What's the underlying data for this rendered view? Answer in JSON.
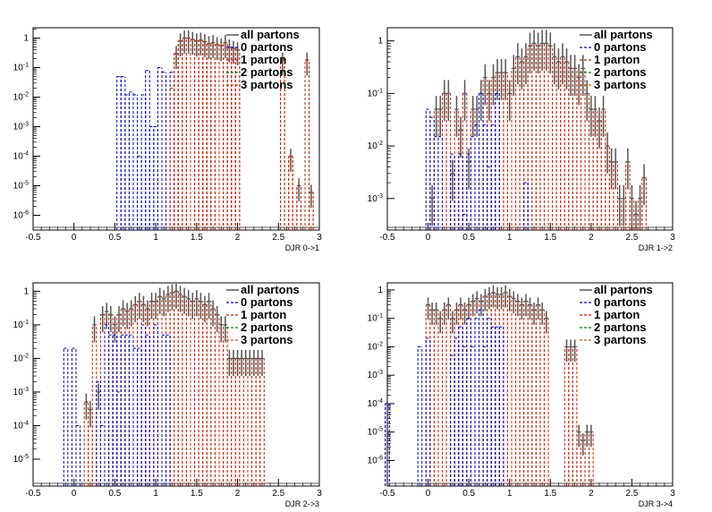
{
  "colors": {
    "all_partons": "#555555",
    "0_parton": "#0000cc",
    "1_parton": "#cc2200",
    "2_partons": "#008800",
    "3_partons": "#cc5500",
    "frame": "#000000",
    "background": "#ffffff"
  },
  "chart_data": [
    {
      "type": "histogram",
      "xlabel": "DJR 0->1",
      "ylabel": "",
      "xlim": [
        -0.5,
        3
      ],
      "ylim_log10": [
        -6.5,
        0.35
      ],
      "log_y": true,
      "grid": false,
      "legend_position": "top-right",
      "x_ticks": [
        "-0.5",
        "0",
        "0.5",
        "1",
        "1.5",
        "2",
        "2.5",
        "3"
      ],
      "y_ticks": [
        "1",
        "10-1",
        "10-2",
        "10-3",
        "10-4",
        "10-5",
        "10-6"
      ],
      "legend": [
        "all partons",
        "0 partons",
        "1 parton",
        "2 partons",
        "3 partons"
      ],
      "series": [
        {
          "name": "all partons",
          "style": "solid-with-error-bars",
          "x": [
            1.25,
            1.3,
            1.35,
            1.4,
            1.45,
            1.5,
            1.55,
            1.6,
            1.65,
            1.7,
            1.75,
            1.8,
            1.85,
            1.9,
            1.95,
            2.0,
            2.55,
            2.65,
            2.75,
            2.85,
            2.9
          ],
          "y": [
            0.3,
            0.8,
            1.0,
            1.0,
            0.9,
            0.8,
            0.85,
            0.75,
            0.65,
            0.7,
            0.6,
            0.55,
            0.7,
            0.5,
            0.45,
            0.4,
            0.18,
            0.0001,
            1e-05,
            0.18,
            6e-06
          ]
        },
        {
          "name": "0 partons",
          "style": "dashed",
          "x": [
            0.55,
            0.6,
            0.65,
            0.7,
            0.75,
            0.8,
            0.85,
            0.9,
            0.95,
            1.0,
            1.05,
            1.1,
            1.15,
            1.2
          ],
          "y": [
            0.05,
            0.05,
            0.012,
            0.015,
            0.012,
            0.0001,
            0.012,
            0.08,
            0.001,
            0.001,
            0.1,
            0.07,
            0.0,
            0.07
          ]
        },
        {
          "name": "1 parton",
          "style": "dashed",
          "x": [
            1.2,
            1.25,
            1.3,
            1.35,
            1.4,
            1.45,
            1.5,
            1.55,
            1.6,
            1.65,
            1.7,
            1.75,
            1.8,
            1.85,
            1.9,
            1.95,
            2.0,
            2.55,
            2.65,
            2.75,
            2.85,
            2.9
          ],
          "y": [
            0.02,
            0.3,
            0.8,
            1.0,
            1.0,
            0.9,
            0.8,
            0.85,
            0.75,
            0.65,
            0.7,
            0.6,
            0.55,
            0.7,
            0.5,
            0.45,
            0.4,
            0.18,
            0.0001,
            1e-05,
            0.18,
            6e-06
          ]
        },
        {
          "name": "2 partons",
          "style": "dashed",
          "x": [],
          "y": []
        },
        {
          "name": "3 partons",
          "style": "dashed",
          "x": [],
          "y": []
        }
      ]
    },
    {
      "type": "histogram",
      "xlabel": "DJR 1->2",
      "ylabel": "",
      "xlim": [
        -0.5,
        3
      ],
      "ylim_log10": [
        -3.6,
        0.25
      ],
      "log_y": true,
      "grid": false,
      "legend_position": "top-right",
      "x_ticks": [
        "-0.5",
        "0",
        "0.5",
        "1",
        "1.5",
        "2",
        "2.5",
        "3"
      ],
      "y_ticks": [
        "1",
        "10-1",
        "10-2",
        "10-3"
      ],
      "legend": [
        "all partons",
        "0 partons",
        "1 parton",
        "2 partons",
        "3 partons"
      ],
      "series": [
        {
          "name": "all partons",
          "style": "solid-with-error-bars",
          "x": [
            0.05,
            0.1,
            0.15,
            0.2,
            0.25,
            0.3,
            0.35,
            0.4,
            0.45,
            0.5,
            0.55,
            0.6,
            0.65,
            0.7,
            0.75,
            0.8,
            0.85,
            0.9,
            0.95,
            1.0,
            1.05,
            1.1,
            1.15,
            1.2,
            1.25,
            1.3,
            1.35,
            1.4,
            1.45,
            1.5,
            1.55,
            1.6,
            1.65,
            1.7,
            1.75,
            1.8,
            1.85,
            1.9,
            1.95,
            2.0,
            2.05,
            2.1,
            2.15,
            2.2,
            2.25,
            2.3,
            2.35,
            2.4,
            2.45,
            2.5,
            2.55,
            2.6,
            2.65
          ],
          "y": [
            0.001,
            0.05,
            0.05,
            0.1,
            0.1,
            0.003,
            0.05,
            0.02,
            0.1,
            0.005,
            0.05,
            0.05,
            0.1,
            0.2,
            0.1,
            0.2,
            0.25,
            0.25,
            0.25,
            0.1,
            0.3,
            0.5,
            0.4,
            0.5,
            0.8,
            0.9,
            0.8,
            0.9,
            0.9,
            0.8,
            0.5,
            0.4,
            0.5,
            0.4,
            0.3,
            0.3,
            0.2,
            0.3,
            0.1,
            0.05,
            0.05,
            0.03,
            0.05,
            0.01,
            0.005,
            0.005,
            0.001,
            0.001,
            0.005,
            0.001,
            0.0005,
            0.001,
            0.0025
          ]
        },
        {
          "name": "0 partons",
          "style": "dashed",
          "x": [
            0.0,
            0.05,
            0.1,
            0.15,
            0.3,
            0.4,
            0.45,
            0.5,
            0.55,
            0.6,
            0.65,
            0.7,
            0.75,
            0.8,
            0.85,
            1.2
          ],
          "y": [
            0.05,
            0.035,
            0.015,
            0.015,
            0.007,
            0.007,
            0.0005,
            0.007,
            0.015,
            0.025,
            0.1,
            0.025,
            0.004,
            0.025,
            0.1,
            0.002
          ]
        },
        {
          "name": "1 parton",
          "style": "dashed",
          "x": [],
          "y": []
        },
        {
          "name": "2 partons",
          "style": "dashed",
          "x": [],
          "y": []
        },
        {
          "name": "3 partons",
          "style": "dashed",
          "x": [],
          "y": []
        }
      ]
    },
    {
      "type": "histogram",
      "xlabel": "DJR 2->3",
      "ylabel": "",
      "xlim": [
        -0.5,
        3
      ],
      "ylim_log10": [
        -5.8,
        0.25
      ],
      "log_y": true,
      "grid": false,
      "legend_position": "top-right",
      "x_ticks": [
        "-0.5",
        "0",
        "0.5",
        "1",
        "1.5",
        "2",
        "2.5",
        "3"
      ],
      "y_ticks": [
        "1",
        "10-1",
        "10-2",
        "10-3",
        "10-4",
        "10-5"
      ],
      "legend": [
        "all partons",
        "0 partons",
        "1 parton",
        "2 partons",
        "3 partons"
      ],
      "series": [
        {
          "name": "all partons",
          "style": "solid-with-error-bars",
          "x": [
            0.15,
            0.2,
            0.25,
            0.3,
            0.35,
            0.4,
            0.45,
            0.5,
            0.55,
            0.6,
            0.65,
            0.7,
            0.75,
            0.8,
            0.85,
            0.9,
            0.95,
            1.0,
            1.05,
            1.1,
            1.15,
            1.2,
            1.25,
            1.3,
            1.35,
            1.4,
            1.45,
            1.5,
            1.55,
            1.6,
            1.65,
            1.7,
            1.75,
            1.8,
            1.85,
            1.9,
            1.95,
            2.0,
            2.05,
            2.1,
            2.15,
            2.2,
            2.25,
            2.3
          ],
          "y": [
            0.0005,
            0.0003,
            0.1,
            0.001,
            0.2,
            0.25,
            0.2,
            0.1,
            0.2,
            0.3,
            0.25,
            0.3,
            0.4,
            0.5,
            0.4,
            0.3,
            0.5,
            0.5,
            0.7,
            0.6,
            0.8,
            0.9,
            1.0,
            0.8,
            0.7,
            0.6,
            0.5,
            0.6,
            0.5,
            0.4,
            0.5,
            0.3,
            0.2,
            0.1,
            0.1,
            0.01,
            0.01,
            0.01,
            0.01,
            0.01,
            0.01,
            0.01,
            0.01,
            0.01
          ]
        },
        {
          "name": "0 partons",
          "style": "dashed",
          "x": [
            -0.1,
            0.0,
            0.05,
            0.3,
            0.35,
            0.4,
            0.45,
            0.5,
            0.55,
            0.6,
            0.65,
            0.7,
            0.75,
            0.8,
            0.85,
            0.9,
            1.0,
            1.1,
            1.15
          ],
          "y": [
            0.02,
            0.02,
            0.0001,
            0.002,
            0.0001,
            0.1,
            0.05,
            0.05,
            0.001,
            0.05,
            0.05,
            0.05,
            0.02,
            0.02,
            0.1,
            0.05,
            0.1,
            0.05,
            0.05
          ]
        },
        {
          "name": "1 parton",
          "style": "dashed",
          "x": [],
          "y": []
        },
        {
          "name": "2 partons",
          "style": "dashed",
          "x": [],
          "y": []
        },
        {
          "name": "3 partons",
          "style": "dashed",
          "x": [],
          "y": []
        }
      ]
    },
    {
      "type": "histogram",
      "xlabel": "DJR 3->4",
      "ylabel": "",
      "xlim": [
        -0.5,
        3
      ],
      "ylim_log10": [
        -6.9,
        0.25
      ],
      "log_y": true,
      "grid": false,
      "legend_position": "top-right",
      "x_ticks": [
        "-0.5",
        "0",
        "0.5",
        "1",
        "1.5",
        "2",
        "2.5",
        "3"
      ],
      "y_ticks": [
        "1",
        "10-1",
        "10-2",
        "10-3",
        "10-4",
        "10-5",
        "10-6"
      ],
      "legend": [
        "all partons",
        "0 partons",
        "1 parton",
        "2 partons",
        "3 partons"
      ],
      "series": [
        {
          "name": "all partons",
          "style": "solid-with-error-bars",
          "x": [
            -0.5,
            0.0,
            0.05,
            0.1,
            0.15,
            0.2,
            0.25,
            0.3,
            0.35,
            0.4,
            0.45,
            0.5,
            0.55,
            0.6,
            0.65,
            0.7,
            0.75,
            0.8,
            0.85,
            0.9,
            0.95,
            1.0,
            1.05,
            1.1,
            1.15,
            1.2,
            1.25,
            1.3,
            1.35,
            1.4,
            1.45,
            1.7,
            1.75,
            1.8,
            1.85,
            1.9,
            1.95,
            2.0
          ],
          "y": [
            0.0001,
            0.3,
            0.2,
            0.2,
            0.1,
            0.2,
            0.3,
            0.1,
            0.2,
            0.3,
            0.2,
            0.3,
            0.4,
            0.5,
            0.4,
            0.6,
            0.7,
            0.8,
            0.7,
            0.7,
            0.8,
            0.6,
            0.5,
            0.4,
            0.3,
            0.4,
            0.3,
            0.2,
            0.3,
            0.2,
            0.1,
            0.01,
            0.01,
            0.01,
            1e-05,
            5e-06,
            1e-05,
            1e-05
          ]
        },
        {
          "name": "0 partons",
          "style": "dashed",
          "x": [
            -0.5,
            -0.1,
            0.0,
            0.3,
            0.35,
            0.4,
            0.45,
            0.5,
            0.55,
            0.6,
            0.65,
            0.7,
            0.75,
            0.8,
            0.85,
            0.9
          ],
          "y": [
            0.0001,
            0.01,
            0.02,
            0.005,
            0.02,
            0.05,
            0.01,
            0.1,
            0.01,
            0.1,
            0.2,
            0.01,
            0.1,
            0.05,
            0.05,
            0.05
          ]
        },
        {
          "name": "1 parton",
          "style": "dashed",
          "x": [],
          "y": []
        },
        {
          "name": "2 partons",
          "style": "dashed",
          "x": [],
          "y": []
        },
        {
          "name": "3 partons",
          "style": "dashed",
          "x": [],
          "y": []
        }
      ]
    }
  ]
}
